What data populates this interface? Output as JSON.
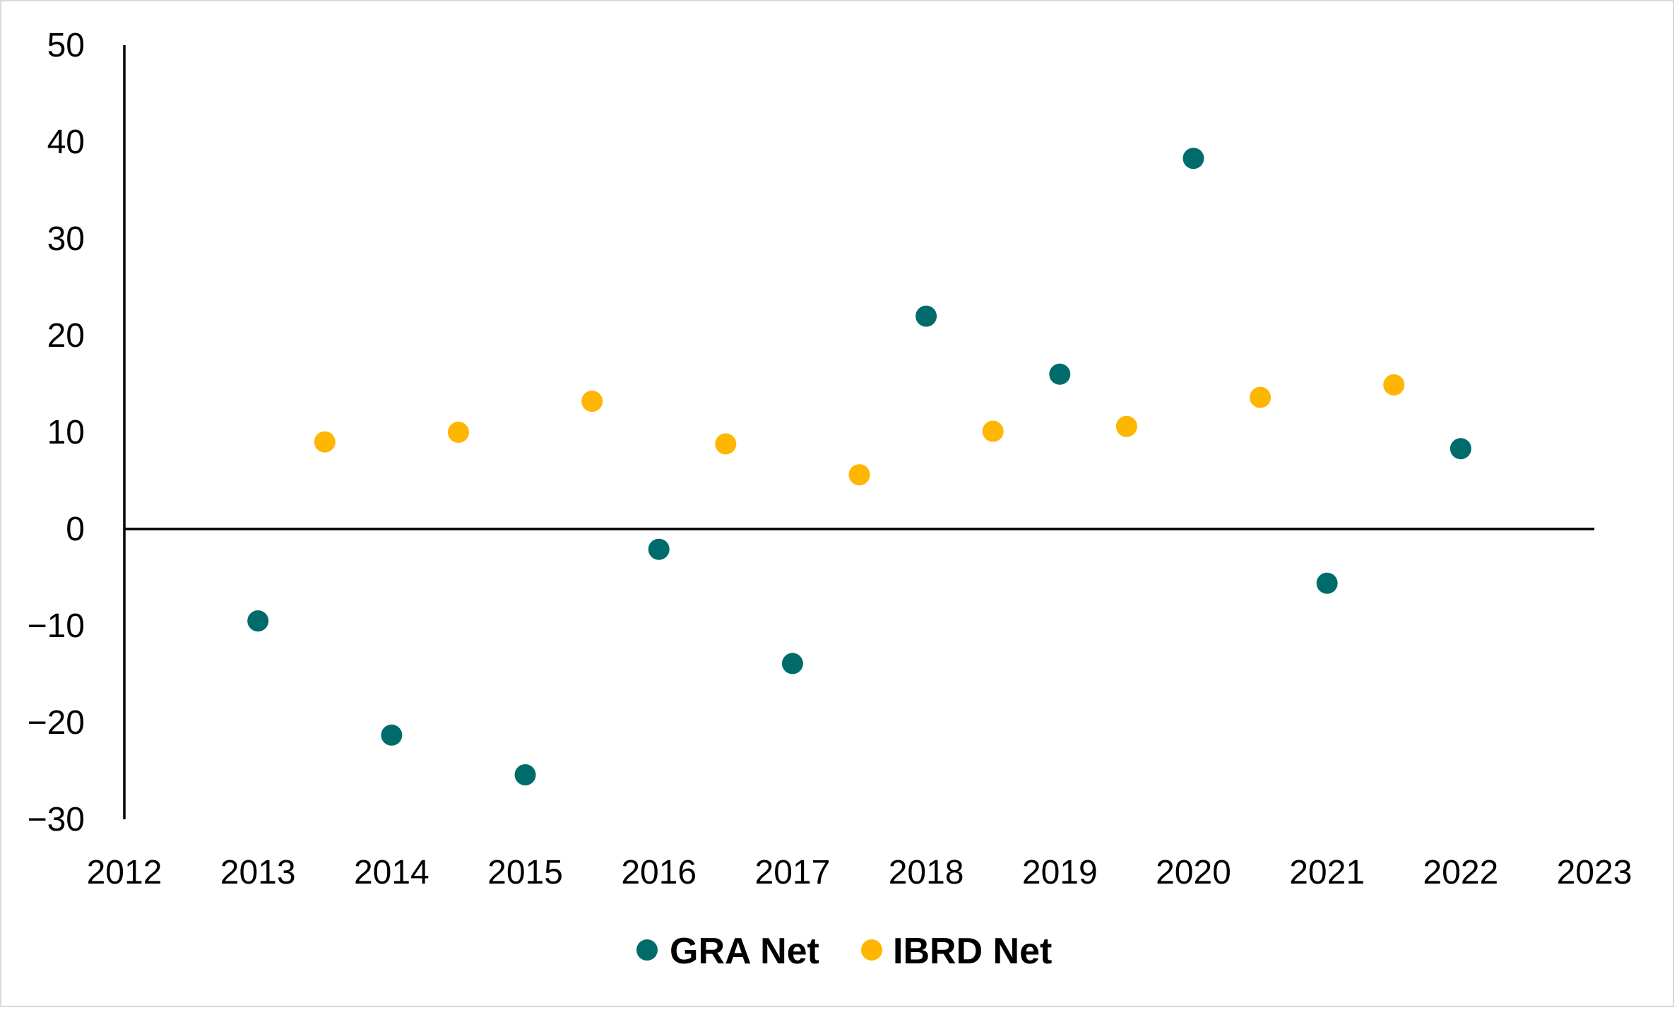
{
  "chart_data": {
    "type": "scatter",
    "title": "",
    "xlabel": "",
    "ylabel": "",
    "xlim": [
      2012,
      2023
    ],
    "ylim": [
      -30,
      50
    ],
    "x_ticks": [
      "2012",
      "2013",
      "2014",
      "2015",
      "2016",
      "2017",
      "2018",
      "2019",
      "2020",
      "2021",
      "2022",
      "2023"
    ],
    "y_ticks": [
      "50",
      "40",
      "30",
      "20",
      "10",
      "0",
      "−10",
      "−20",
      "−30"
    ],
    "grid": false,
    "legend_position": "bottom-center",
    "series": [
      {
        "name": "GRA Net",
        "color": "#006B6B",
        "points": [
          {
            "x": 2013,
            "y": -9.5
          },
          {
            "x": 2014,
            "y": -21.3
          },
          {
            "x": 2015,
            "y": -25.4
          },
          {
            "x": 2016,
            "y": -2.1
          },
          {
            "x": 2017,
            "y": -13.9
          },
          {
            "x": 2018,
            "y": 22.0
          },
          {
            "x": 2019,
            "y": 16.0
          },
          {
            "x": 2020,
            "y": 38.3
          },
          {
            "x": 2021,
            "y": -5.6
          },
          {
            "x": 2022,
            "y": 8.3
          }
        ]
      },
      {
        "name": "IBRD Net",
        "color": "#FFB600",
        "points": [
          {
            "x": 2013.5,
            "y": 9.0
          },
          {
            "x": 2014.5,
            "y": 10.0
          },
          {
            "x": 2015.5,
            "y": 13.2
          },
          {
            "x": 2016.5,
            "y": 8.8
          },
          {
            "x": 2017.5,
            "y": 5.6
          },
          {
            "x": 2018.5,
            "y": 10.1
          },
          {
            "x": 2019.5,
            "y": 10.6
          },
          {
            "x": 2020.5,
            "y": 13.6
          },
          {
            "x": 2021.5,
            "y": 14.9
          }
        ]
      }
    ]
  }
}
